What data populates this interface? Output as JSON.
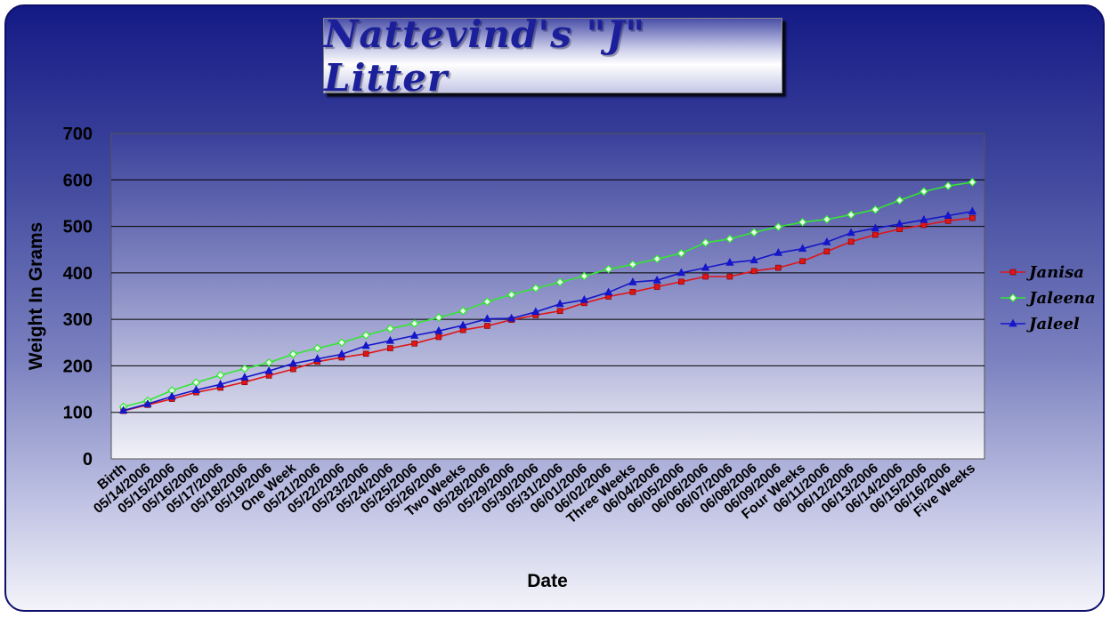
{
  "chart_data": {
    "type": "line",
    "title": "Nattevind's \"J\" Litter",
    "xlabel": "Date",
    "ylabel": "Weight In Grams",
    "ylim": [
      0,
      700
    ],
    "yticks": [
      0,
      100,
      200,
      300,
      400,
      500,
      600,
      700
    ],
    "grid": "horizontal",
    "legend_position": "right",
    "categories": [
      "Birth",
      "05/14/2006",
      "05/15/2006",
      "05/16/2006",
      "05/17/2006",
      "05/18/2006",
      "05/19/2006",
      "One Week",
      "05/21/2006",
      "05/22/2006",
      "05/23/2006",
      "05/24/2006",
      "05/25/2006",
      "05/26/2006",
      "Two Weeks",
      "05/28/2006",
      "05/29/2006",
      "05/30/2006",
      "05/31/2006",
      "06/01/2006",
      "06/02/2006",
      "Three Weeks",
      "06/04/2006",
      "06/05/2006",
      "06/06/2006",
      "06/07/2006",
      "06/08/2006",
      "06/09/2006",
      "Four Weeks",
      "06/11/2006",
      "06/12/2006",
      "06/13/2006",
      "06/14/2006",
      "06/15/2006",
      "06/16/2006",
      "Five Weeks"
    ],
    "series": [
      {
        "name": "Janisa",
        "color": "#e01515",
        "marker": "square",
        "values": [
          103,
          116,
          129,
          143,
          153,
          165,
          179,
          193,
          209,
          218,
          226,
          238,
          248,
          262,
          277,
          286,
          299,
          309,
          318,
          335,
          349,
          359,
          370,
          381,
          392,
          392,
          404,
          411,
          425,
          446,
          467,
          482,
          494,
          503,
          512,
          518
        ]
      },
      {
        "name": "Jaleena",
        "color": "#33e633",
        "marker": "diamond",
        "values": [
          112,
          125,
          147,
          164,
          180,
          194,
          207,
          225,
          238,
          250,
          266,
          280,
          291,
          304,
          318,
          338,
          353,
          367,
          380,
          393,
          408,
          418,
          430,
          442,
          465,
          473,
          487,
          499,
          509,
          515,
          525,
          536,
          556,
          575,
          587,
          595
        ]
      },
      {
        "name": "Jaleel",
        "color": "#1515c9",
        "marker": "triangle",
        "values": [
          104,
          118,
          134,
          148,
          160,
          175,
          189,
          205,
          215,
          225,
          243,
          254,
          265,
          275,
          287,
          301,
          302,
          316,
          333,
          342,
          358,
          380,
          384,
          400,
          411,
          422,
          427,
          443,
          452,
          466,
          486,
          496,
          505,
          514,
          523,
          532
        ]
      }
    ]
  }
}
